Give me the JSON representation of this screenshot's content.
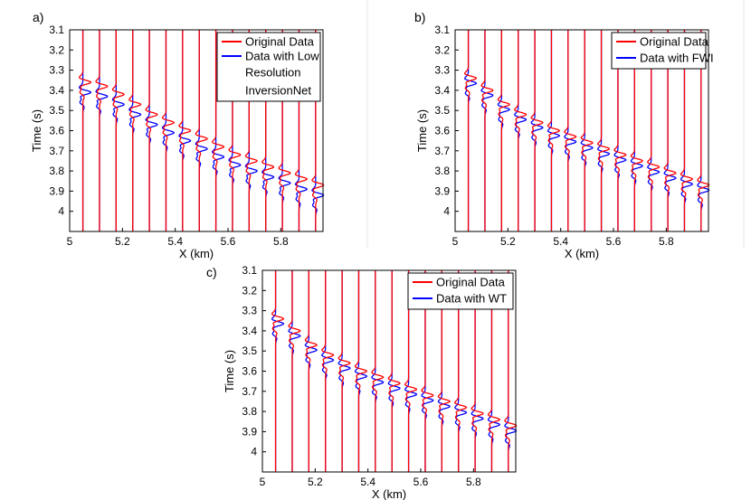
{
  "chart_data": [
    {
      "type": "line",
      "panel_label": "a)",
      "xlabel": "X (km)",
      "ylabel": "Time (s)",
      "xlim": [
        5.0,
        5.96
      ],
      "ylim": [
        3.1,
        4.1
      ],
      "y_reversed": true,
      "grid": false,
      "xticks": [
        "5",
        "5.2",
        "5.4",
        "5.6",
        "5.8"
      ],
      "yticks": [
        "3.1",
        "3.2",
        "3.3",
        "3.4",
        "3.5",
        "3.6",
        "3.7",
        "3.8",
        "3.9",
        "4"
      ],
      "trace_x": [
        5.05,
        5.113,
        5.176,
        5.239,
        5.302,
        5.365,
        5.428,
        5.491,
        5.554,
        5.617,
        5.68,
        5.743,
        5.806,
        5.869,
        5.932
      ],
      "arrival_times": [
        3.36,
        3.38,
        3.42,
        3.47,
        3.52,
        3.56,
        3.6,
        3.64,
        3.68,
        3.72,
        3.75,
        3.78,
        3.81,
        3.84,
        3.87
      ],
      "series": [
        {
          "name": "Original Data",
          "color": "#ff0000",
          "time_shift": 0.0,
          "amplitude": 0.03
        },
        {
          "name": "Data with Low Resolution InversionNet",
          "color": "#0000ff",
          "time_shift": 0.05,
          "amplitude": 0.03
        }
      ],
      "legend": {
        "placement": "top-right",
        "lines": [
          [
            "Original  Data"
          ],
          [
            "Data with Low",
            "Resolution",
            "InversionNet"
          ]
        ]
      }
    },
    {
      "type": "line",
      "panel_label": "b)",
      "xlabel": "X (km)",
      "ylabel": "Time (s)",
      "xlim": [
        5.0,
        5.96
      ],
      "ylim": [
        3.1,
        4.1
      ],
      "y_reversed": true,
      "grid": false,
      "xticks": [
        "5",
        "5.2",
        "5.4",
        "5.6",
        "5.8"
      ],
      "yticks": [
        "3.1",
        "3.2",
        "3.3",
        "3.4",
        "3.5",
        "3.6",
        "3.7",
        "3.8",
        "3.9",
        "4"
      ],
      "trace_x": [
        5.05,
        5.113,
        5.176,
        5.239,
        5.302,
        5.365,
        5.428,
        5.491,
        5.554,
        5.617,
        5.68,
        5.743,
        5.806,
        5.869,
        5.932
      ],
      "arrival_times": [
        3.34,
        3.4,
        3.47,
        3.52,
        3.56,
        3.6,
        3.63,
        3.66,
        3.69,
        3.72,
        3.75,
        3.78,
        3.81,
        3.84,
        3.87
      ],
      "series": [
        {
          "name": "Original Data",
          "color": "#ff0000",
          "time_shift": 0.0,
          "amplitude": 0.03
        },
        {
          "name": "Data with FWI",
          "color": "#0000ff",
          "time_shift": 0.025,
          "amplitude": 0.03
        }
      ],
      "legend": {
        "placement": "top-right",
        "lines": [
          [
            "Original  Data"
          ],
          [
            "Data with FWI"
          ]
        ]
      }
    },
    {
      "type": "line",
      "panel_label": "c)",
      "xlabel": "X (km)",
      "ylabel": "Time (s)",
      "xlim": [
        5.0,
        5.96
      ],
      "ylim": [
        3.1,
        4.1
      ],
      "y_reversed": true,
      "grid": false,
      "xticks": [
        "5",
        "5.2",
        "5.4",
        "5.6",
        "5.8"
      ],
      "yticks": [
        "3.1",
        "3.2",
        "3.3",
        "3.4",
        "3.5",
        "3.6",
        "3.7",
        "3.8",
        "3.9",
        "4"
      ],
      "trace_x": [
        5.05,
        5.113,
        5.176,
        5.239,
        5.302,
        5.365,
        5.428,
        5.491,
        5.554,
        5.617,
        5.68,
        5.743,
        5.806,
        5.869,
        5.932
      ],
      "arrival_times": [
        3.34,
        3.4,
        3.47,
        3.52,
        3.56,
        3.6,
        3.63,
        3.66,
        3.69,
        3.72,
        3.75,
        3.78,
        3.81,
        3.84,
        3.87
      ],
      "series": [
        {
          "name": "Original Data",
          "color": "#ff0000",
          "time_shift": 0.0,
          "amplitude": 0.03
        },
        {
          "name": "Data with WT",
          "color": "#0000ff",
          "time_shift": 0.025,
          "amplitude": 0.03
        }
      ],
      "legend": {
        "placement": "top-right",
        "lines": [
          [
            "Original  Data"
          ],
          [
            "Data with WT"
          ]
        ]
      }
    }
  ]
}
